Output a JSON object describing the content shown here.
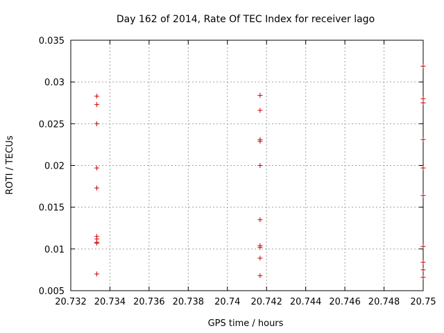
{
  "chart_data": {
    "type": "scatter",
    "title": "Day 162 of 2014, Rate Of TEC Index for receiver lago",
    "xlabel": "GPS time / hours",
    "ylabel": "ROTI / TECUs",
    "xlim": [
      20.732,
      20.75
    ],
    "ylim": [
      0.005,
      0.035
    ],
    "xticks": [
      "20.732",
      "20.734",
      "20.736",
      "20.738",
      "20.74",
      "20.742",
      "20.744",
      "20.746",
      "20.748",
      "20.75"
    ],
    "yticks": [
      "0.005",
      "0.01",
      "0.015",
      "0.02",
      "0.025",
      "0.03",
      "0.035"
    ],
    "grid": true,
    "marker": "+",
    "series": [
      {
        "name": "ROTI",
        "color": "#cc0000",
        "points": [
          {
            "x": 20.73333,
            "y": 0.0283
          },
          {
            "x": 20.73333,
            "y": 0.0273
          },
          {
            "x": 20.73333,
            "y": 0.025
          },
          {
            "x": 20.73333,
            "y": 0.0197
          },
          {
            "x": 20.73333,
            "y": 0.0173
          },
          {
            "x": 20.73333,
            "y": 0.0115
          },
          {
            "x": 20.73333,
            "y": 0.0112
          },
          {
            "x": 20.73333,
            "y": 0.0108
          },
          {
            "x": 20.73333,
            "y": 0.0107
          },
          {
            "x": 20.73333,
            "y": 0.007
          },
          {
            "x": 20.74167,
            "y": 0.0284
          },
          {
            "x": 20.74167,
            "y": 0.0266
          },
          {
            "x": 20.74167,
            "y": 0.0231
          },
          {
            "x": 20.74167,
            "y": 0.0229
          },
          {
            "x": 20.74167,
            "y": 0.02
          },
          {
            "x": 20.74167,
            "y": 0.0135
          },
          {
            "x": 20.74167,
            "y": 0.0104
          },
          {
            "x": 20.74167,
            "y": 0.0102
          },
          {
            "x": 20.74167,
            "y": 0.0089
          },
          {
            "x": 20.74167,
            "y": 0.0068
          },
          {
            "x": 20.75,
            "y": 0.0319
          },
          {
            "x": 20.75,
            "y": 0.028
          },
          {
            "x": 20.75,
            "y": 0.0275
          },
          {
            "x": 20.75,
            "y": 0.0231
          },
          {
            "x": 20.75,
            "y": 0.0197
          },
          {
            "x": 20.75,
            "y": 0.0164
          },
          {
            "x": 20.75,
            "y": 0.0103
          },
          {
            "x": 20.75,
            "y": 0.0084
          },
          {
            "x": 20.75,
            "y": 0.0075
          },
          {
            "x": 20.75,
            "y": 0.0066
          }
        ]
      }
    ]
  }
}
